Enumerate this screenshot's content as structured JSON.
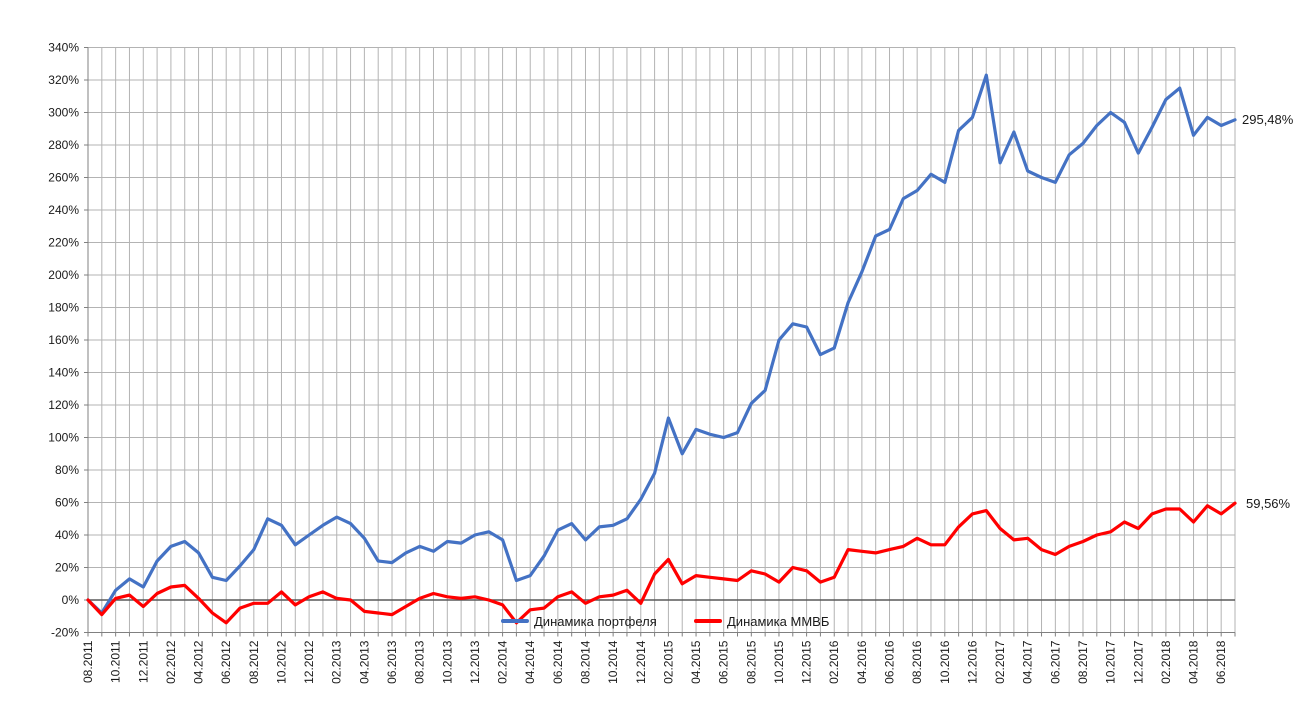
{
  "chart_data": {
    "type": "line",
    "title": "",
    "grid": true,
    "legend_position": "bottom-inside",
    "y_axis": {
      "min": -20,
      "max": 340,
      "step": 20,
      "unit": "%"
    },
    "x_axis": {
      "start": "08.2011",
      "end": "07.2018",
      "months_total": 84,
      "gridline_every_months": 1,
      "label_every_months": 2,
      "tick_labels": [
        "08.2011",
        "10.2011",
        "12.2011",
        "02.2012",
        "04.2012",
        "06.2012",
        "08.2012",
        "10.2012",
        "12.2012",
        "02.2013",
        "04.2013",
        "06.2013",
        "08.2013",
        "10.2013",
        "12.2013",
        "02.2014",
        "04.2014",
        "06.2014",
        "08.2014",
        "10.2014",
        "12.2014",
        "02.2015",
        "04.2015",
        "06.2015",
        "08.2015",
        "10.2015",
        "12.2015",
        "02.2016",
        "04.2016",
        "06.2016",
        "08.2016",
        "10.2016",
        "12.2016",
        "02.2017",
        "04.2017",
        "06.2017",
        "08.2017",
        "10.2017",
        "12.2017",
        "02.2018",
        "04.2018",
        "06.2018"
      ]
    },
    "colors": {
      "grid": "#b3b3b3",
      "axis": "#808080",
      "zero_line": "#595959",
      "text": "#1a1a1a",
      "background": "#ffffff"
    },
    "series": [
      {
        "name": "Динамика портфеля",
        "color": "#4472C4",
        "end_label": "295,48%",
        "values": [
          0,
          -8,
          6,
          13,
          8,
          24,
          33,
          36,
          29,
          14,
          12,
          21,
          31,
          50,
          46,
          34,
          40,
          46,
          51,
          47,
          38,
          24,
          23,
          29,
          33,
          30,
          36,
          35,
          40,
          42,
          37,
          12,
          15,
          27,
          43,
          47,
          37,
          45,
          46,
          50,
          62,
          78,
          112,
          90,
          105,
          102,
          100,
          103,
          121,
          129,
          160,
          170,
          168,
          151,
          155,
          183,
          202,
          224,
          228,
          247,
          252,
          262,
          257,
          289,
          297,
          323,
          269,
          288,
          264,
          260,
          257,
          274,
          281,
          292,
          300,
          294,
          275,
          291,
          308,
          315,
          286,
          297,
          292,
          295.48
        ]
      },
      {
        "name": "Динамика ММВБ",
        "color": "#FF0000",
        "end_label": "59,56%",
        "values": [
          0,
          -9,
          1,
          3,
          -4,
          4,
          8,
          9,
          1,
          -8,
          -14,
          -5,
          -2,
          -2,
          5,
          -3,
          2,
          5,
          1,
          0,
          -7,
          -8,
          -9,
          -4,
          1,
          4,
          2,
          1,
          2,
          0,
          -3,
          -14,
          -6,
          -5,
          2,
          5,
          -2,
          2,
          3,
          6,
          -2,
          16,
          25,
          10,
          15,
          14,
          13,
          12,
          18,
          16,
          11,
          20,
          18,
          11,
          14,
          31,
          30,
          29,
          31,
          33,
          38,
          34,
          34,
          45,
          53,
          55,
          44,
          37,
          38,
          31,
          28,
          33,
          36,
          40,
          42,
          48,
          44,
          53,
          56,
          56,
          48,
          58,
          53,
          59.56
        ]
      }
    ]
  }
}
